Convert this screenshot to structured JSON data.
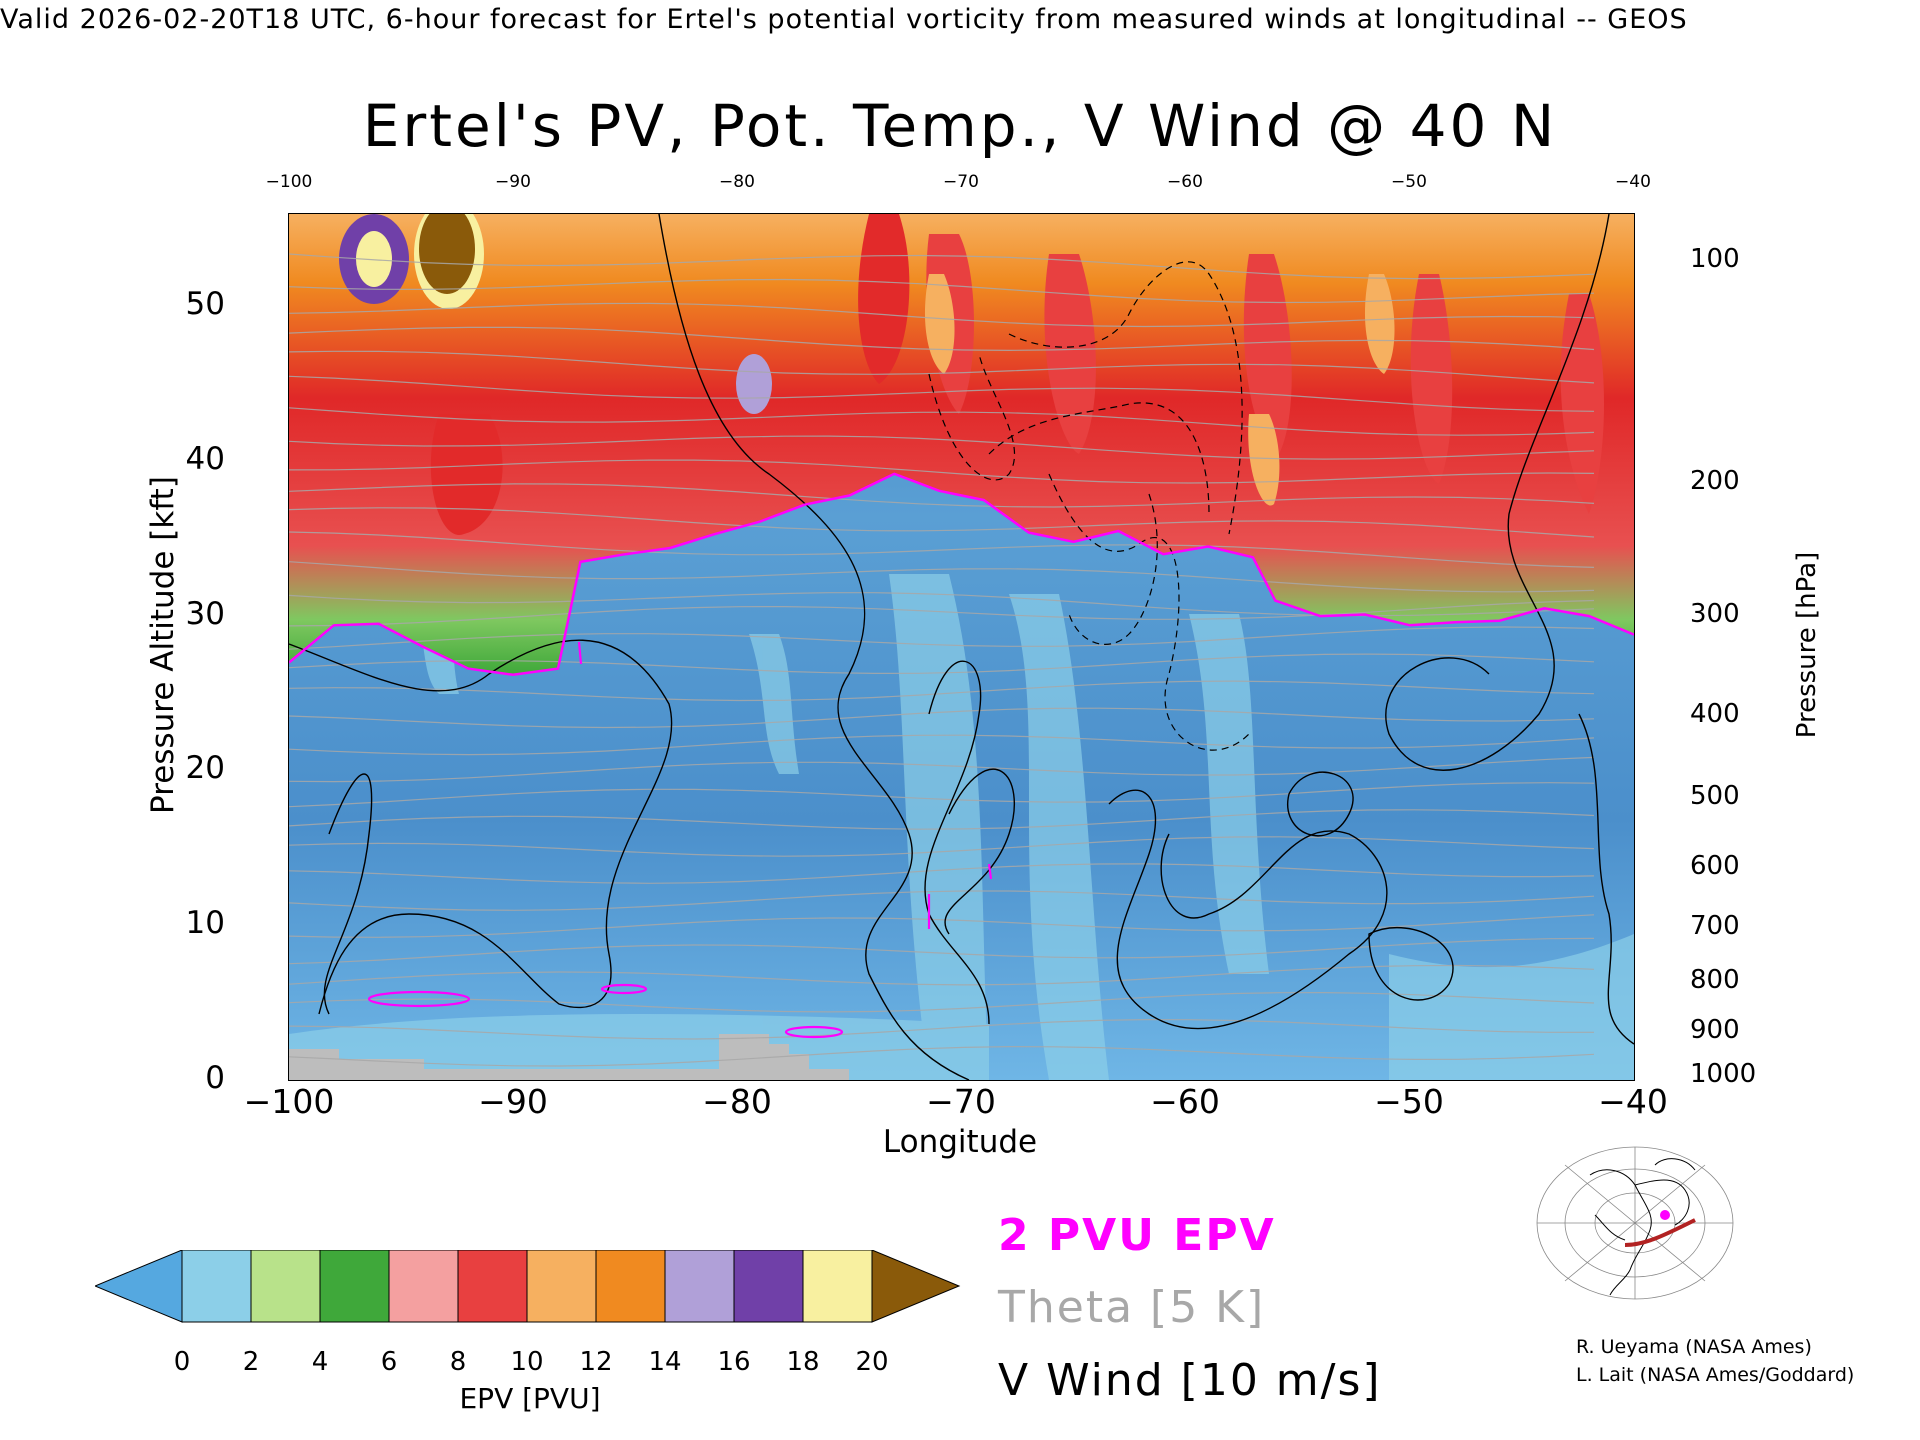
{
  "header": "Valid 2026-02-20T18 UTC, 6-hour forecast for Ertel's potential vorticity from measured winds at longitudinal -- GEOS",
  "chart_data": {
    "type": "heatmap",
    "title": "Ertel's PV, Pot. Temp., V Wind @ 40 N",
    "xlabel": "Longitude",
    "ylabel": "Pressure Altitude [kft]",
    "ylabel_right": "Pressure [hPa]",
    "xlim": [
      -100,
      -40
    ],
    "ylim": [
      0,
      56
    ],
    "x_ticks": [
      "−100",
      "−90",
      "−80",
      "−70",
      "−60",
      "−50",
      "−40"
    ],
    "x_ticks_top": [
      "−100",
      "−90",
      "−80",
      "−70",
      "−60",
      "−50",
      "−40"
    ],
    "y_ticks": [
      "0",
      "10",
      "20",
      "30",
      "40",
      "50"
    ],
    "pressure_ticks": [
      {
        "label": "100",
        "kft": 53.0
      },
      {
        "label": "200",
        "kft": 38.7
      },
      {
        "label": "300",
        "kft": 30.1
      },
      {
        "label": "400",
        "kft": 23.6
      },
      {
        "label": "500",
        "kft": 18.3
      },
      {
        "label": "600",
        "kft": 13.8
      },
      {
        "label": "700",
        "kft": 9.9
      },
      {
        "label": "800",
        "kft": 6.4
      },
      {
        "label": "900",
        "kft": 3.2
      },
      {
        "label": "1000",
        "kft": 0.3
      }
    ],
    "tropopause_2pvu_kft": [
      {
        "x": -100,
        "y": 27.0
      },
      {
        "x": -98,
        "y": 29.4
      },
      {
        "x": -96,
        "y": 29.5
      },
      {
        "x": -94,
        "y": 28.0
      },
      {
        "x": -92,
        "y": 26.6
      },
      {
        "x": -90,
        "y": 26.2
      },
      {
        "x": -88,
        "y": 26.6
      },
      {
        "x": -87,
        "y": 33.5
      },
      {
        "x": -85,
        "y": 34.0
      },
      {
        "x": -83,
        "y": 34.4
      },
      {
        "x": -81,
        "y": 35.3
      },
      {
        "x": -79,
        "y": 36.1
      },
      {
        "x": -77,
        "y": 37.2
      },
      {
        "x": -75,
        "y": 37.8
      },
      {
        "x": -73,
        "y": 39.2
      },
      {
        "x": -71,
        "y": 38.1
      },
      {
        "x": -69,
        "y": 37.5
      },
      {
        "x": -67,
        "y": 35.4
      },
      {
        "x": -65,
        "y": 34.8
      },
      {
        "x": -63,
        "y": 35.5
      },
      {
        "x": -61,
        "y": 34.0
      },
      {
        "x": -59,
        "y": 34.5
      },
      {
        "x": -57,
        "y": 33.8
      },
      {
        "x": -56,
        "y": 31.0
      },
      {
        "x": -54,
        "y": 30.0
      },
      {
        "x": -52,
        "y": 30.1
      },
      {
        "x": -50,
        "y": 29.4
      },
      {
        "x": -48,
        "y": 29.6
      },
      {
        "x": -46,
        "y": 29.7
      },
      {
        "x": -44,
        "y": 30.5
      },
      {
        "x": -42,
        "y": 30.0
      },
      {
        "x": -40,
        "y": 28.8
      }
    ],
    "colorbar": {
      "label": "EPV [PVU]",
      "ticks": [
        "0",
        "2",
        "4",
        "6",
        "8",
        "10",
        "12",
        "14",
        "16",
        "18",
        "20"
      ],
      "colors": [
        "#55a8e0",
        "#8ccfe8",
        "#b8e28a",
        "#3fa83a",
        "#f4a0a0",
        "#e84040",
        "#f6b060",
        "#f08a20",
        "#b0a0d8",
        "#7040a8",
        "#f8f0a0",
        "#8a5a0a"
      ]
    }
  },
  "legend": {
    "pvu": "2 PVU EPV",
    "theta": "Theta [5 K]",
    "vwind": "V Wind [10 m/s]"
  },
  "colors": {
    "pvu": "#ff00ff",
    "theta": "#a8a8a8",
    "stratosphere": "#e53030",
    "troposphere": "#5a9fd4",
    "terrain": "#bdbdbd"
  },
  "credits": {
    "line1": "R. Ueyama (NASA Ames)",
    "line2": "L. Lait (NASA Ames/Goddard)"
  },
  "map_inset": {
    "icon": "north-america-map-icon"
  }
}
